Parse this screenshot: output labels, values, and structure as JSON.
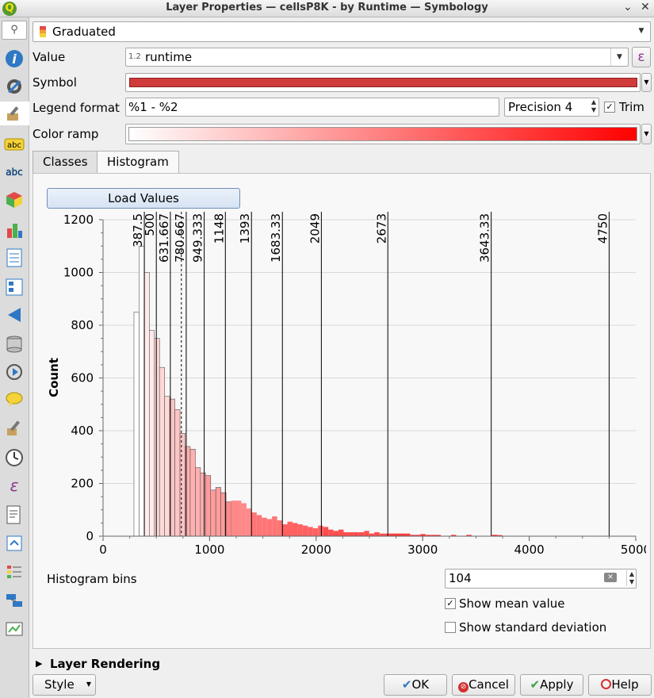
{
  "window": {
    "title": "Layer Properties — cellsP8K - by Runtime — Symbology",
    "logo": "Q"
  },
  "sidebar": {
    "search_icon": "search-icon",
    "items": [
      "information-icon",
      "source-icon",
      "symbology-icon",
      "labels-icon",
      "masks-icon",
      "3d-view-icon",
      "diagrams-icon",
      "fields-icon",
      "attributes-form-icon",
      "joins-icon",
      "auxiliary-storage-icon",
      "actions-icon",
      "display-icon",
      "rendering-icon",
      "temporal-icon",
      "variables-icon",
      "metadata-icon",
      "dependencies-icon",
      "legend-icon",
      "server-icon",
      "digitizing-icon"
    ]
  },
  "renderer": {
    "selected": "Graduated"
  },
  "value": {
    "label": "Value",
    "type_badge": "1.2",
    "field": "runtime",
    "expr_button": "ε"
  },
  "symbol": {
    "label": "Symbol",
    "color": "#cf3b3b"
  },
  "legend_format": {
    "label": "Legend format",
    "value": "%1 - %2",
    "precision": "Precision 4",
    "trim_label": "Trim",
    "trim_checked": "✓"
  },
  "color_ramp": {
    "label": "Color ramp",
    "from": "#ffffff",
    "to": "#ff0000"
  },
  "tabs": {
    "classes": "Classes",
    "histogram": "Histogram"
  },
  "histogram": {
    "load_values": "Load Values",
    "bins_label": "Histogram bins",
    "bins_value": "104",
    "show_mean": "Show mean value",
    "show_mean_checked": "✓",
    "show_std": "Show standard deviation"
  },
  "chart_data": {
    "type": "bar",
    "title": "",
    "xlabel": "",
    "ylabel": "Count",
    "xlim": [
      0,
      5000
    ],
    "ylim": [
      0,
      1200
    ],
    "x_ticks": [
      "0",
      "1000",
      "2000",
      "3000",
      "4000",
      "5000"
    ],
    "y_ticks": [
      "0",
      "200",
      "400",
      "600",
      "800",
      "1000",
      "1200"
    ],
    "bin_width": 48,
    "bars": [
      {
        "x": 290,
        "v": 850
      },
      {
        "x": 338,
        "v": 1100
      },
      {
        "x": 386,
        "v": 1000
      },
      {
        "x": 434,
        "v": 780
      },
      {
        "x": 482,
        "v": 750
      },
      {
        "x": 530,
        "v": 640
      },
      {
        "x": 578,
        "v": 530
      },
      {
        "x": 626,
        "v": 520
      },
      {
        "x": 674,
        "v": 480
      },
      {
        "x": 722,
        "v": 390
      },
      {
        "x": 770,
        "v": 340
      },
      {
        "x": 818,
        "v": 330
      },
      {
        "x": 866,
        "v": 260
      },
      {
        "x": 914,
        "v": 240
      },
      {
        "x": 962,
        "v": 230
      },
      {
        "x": 1010,
        "v": 175
      },
      {
        "x": 1058,
        "v": 185
      },
      {
        "x": 1106,
        "v": 165
      },
      {
        "x": 1154,
        "v": 130
      },
      {
        "x": 1202,
        "v": 135
      },
      {
        "x": 1250,
        "v": 135
      },
      {
        "x": 1298,
        "v": 125
      },
      {
        "x": 1346,
        "v": 105
      },
      {
        "x": 1394,
        "v": 90
      },
      {
        "x": 1442,
        "v": 80
      },
      {
        "x": 1490,
        "v": 70
      },
      {
        "x": 1538,
        "v": 65
      },
      {
        "x": 1586,
        "v": 75
      },
      {
        "x": 1634,
        "v": 60
      },
      {
        "x": 1682,
        "v": 45
      },
      {
        "x": 1730,
        "v": 55
      },
      {
        "x": 1778,
        "v": 50
      },
      {
        "x": 1826,
        "v": 45
      },
      {
        "x": 1874,
        "v": 40
      },
      {
        "x": 1922,
        "v": 35
      },
      {
        "x": 1970,
        "v": 30
      },
      {
        "x": 2018,
        "v": 40
      },
      {
        "x": 2066,
        "v": 35
      },
      {
        "x": 2114,
        "v": 25
      },
      {
        "x": 2162,
        "v": 20
      },
      {
        "x": 2210,
        "v": 25
      },
      {
        "x": 2258,
        "v": 15
      },
      {
        "x": 2306,
        "v": 15
      },
      {
        "x": 2354,
        "v": 15
      },
      {
        "x": 2402,
        "v": 15
      },
      {
        "x": 2450,
        "v": 20
      },
      {
        "x": 2498,
        "v": 10
      },
      {
        "x": 2546,
        "v": 15
      },
      {
        "x": 2594,
        "v": 10
      },
      {
        "x": 2642,
        "v": 10
      },
      {
        "x": 2690,
        "v": 10
      },
      {
        "x": 2738,
        "v": 10
      },
      {
        "x": 2786,
        "v": 10
      },
      {
        "x": 2834,
        "v": 10
      },
      {
        "x": 2882,
        "v": 5
      },
      {
        "x": 2930,
        "v": 5
      },
      {
        "x": 2978,
        "v": 8
      },
      {
        "x": 3026,
        "v": 5
      },
      {
        "x": 3074,
        "v": 5
      },
      {
        "x": 3122,
        "v": 5
      },
      {
        "x": 3266,
        "v": 5
      },
      {
        "x": 3410,
        "v": 5
      },
      {
        "x": 3650,
        "v": 5
      },
      {
        "x": 3698,
        "v": 4
      }
    ],
    "class_breaks": [
      {
        "value": 387.5,
        "label": "387.5"
      },
      {
        "value": 500,
        "label": "500"
      },
      {
        "value": 631.667,
        "label": "631.667"
      },
      {
        "value": 780.667,
        "label": "780.667"
      },
      {
        "value": 949.333,
        "label": "949.333"
      },
      {
        "value": 1148,
        "label": "1148"
      },
      {
        "value": 1393,
        "label": "1393"
      },
      {
        "value": 1683.33,
        "label": "1683.33"
      },
      {
        "value": 2049,
        "label": "2049"
      },
      {
        "value": 2673,
        "label": "2673"
      },
      {
        "value": 3643.33,
        "label": "3643.33"
      },
      {
        "value": 4750,
        "label": "4750"
      }
    ],
    "mean_value": 735,
    "grid": true
  },
  "layer_rendering": {
    "label": "Layer Rendering"
  },
  "footer": {
    "style": "Style",
    "ok": "OK",
    "cancel": "Cancel",
    "apply": "Apply",
    "help": "Help"
  }
}
